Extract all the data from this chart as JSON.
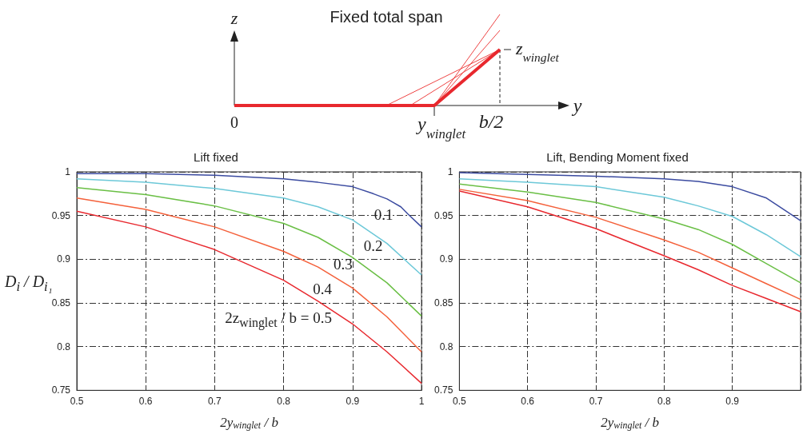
{
  "chart_data": [
    {
      "type": "other",
      "title": "Fixed total span",
      "annotations": [
        "z",
        "y",
        "0",
        "y$_{winglet}$",
        "b/2",
        "z$_{winglet}$"
      ]
    },
    {
      "type": "line",
      "title": "Lift fixed",
      "xlabel": "2y$_{winglet}$ / b",
      "ylabel": "D$_{i}$ / D$_{i₁}$",
      "xlim": [
        0.5,
        1
      ],
      "ylim": [
        0.75,
        1
      ],
      "xticks": [
        0.5,
        0.6,
        0.7,
        0.8,
        0.9,
        1
      ],
      "yticks": [
        0.75,
        0.8,
        0.85,
        0.9,
        0.95,
        1
      ],
      "grid": true,
      "line_style": "solid",
      "marker": "none",
      "x": [
        0.5,
        0.6,
        0.7,
        0.8,
        0.85,
        0.9,
        0.95,
        1
      ],
      "series": [
        {
          "name": "0.1",
          "color": "#3b4ba0",
          "x": [
            0.5,
            0.6,
            0.7,
            0.8,
            0.85,
            0.9,
            0.93,
            0.95,
            0.97,
            0.98,
            1
          ],
          "values": [
            0.998,
            0.998,
            0.996,
            0.992,
            0.988,
            0.983,
            0.975,
            0.969,
            0.96,
            0.952,
            0.937
          ]
        },
        {
          "name": "0.2",
          "color": "#6cc8d8",
          "values": [
            0.992,
            0.988,
            0.981,
            0.97,
            0.96,
            0.945,
            0.918,
            0.882
          ]
        },
        {
          "name": "0.3",
          "color": "#6abf45",
          "values": [
            0.982,
            0.974,
            0.961,
            0.941,
            0.925,
            0.902,
            0.873,
            0.835
          ]
        },
        {
          "name": "0.4",
          "color": "#f4603a",
          "values": [
            0.97,
            0.957,
            0.937,
            0.909,
            0.891,
            0.867,
            0.834,
            0.794
          ]
        },
        {
          "name": "2z$_{winglet}$ / b = 0.5",
          "color": "#e8282e",
          "values": [
            0.955,
            0.937,
            0.911,
            0.876,
            0.852,
            0.826,
            0.794,
            0.758
          ]
        }
      ]
    },
    {
      "type": "line",
      "title": "Lift, Bending Moment fixed",
      "xlabel": "2y$_{winglet}$ / b",
      "xlim": [
        0.5,
        1
      ],
      "ylim": [
        0.75,
        1
      ],
      "xticks": [
        0.5,
        0.6,
        0.7,
        0.8,
        0.9,
        {
          "value": 1,
          "label": null
        }
      ],
      "yticks": [
        0.75,
        0.8,
        0.85,
        0.9,
        0.95,
        1
      ],
      "grid": true,
      "line_style": "solid",
      "marker": "none",
      "x": [
        0.5,
        0.6,
        0.7,
        0.8,
        0.85,
        0.9,
        0.95,
        1
      ],
      "series": [
        {
          "color": "#3b4ba0",
          "values": [
            0.999,
            0.997,
            0.995,
            0.992,
            0.989,
            0.983,
            0.97,
            0.944
          ]
        },
        {
          "color": "#6cc8d8",
          "values": [
            0.992,
            0.988,
            0.983,
            0.971,
            0.961,
            0.949,
            0.928,
            0.903
          ]
        },
        {
          "color": "#6abf45",
          "values": [
            0.986,
            0.977,
            0.965,
            0.946,
            0.934,
            0.917,
            0.895,
            0.873
          ]
        },
        {
          "color": "#f4603a",
          "values": [
            0.98,
            0.967,
            0.948,
            0.922,
            0.908,
            0.89,
            0.872,
            0.854
          ]
        },
        {
          "color": "#e8282e",
          "values": [
            0.978,
            0.96,
            0.935,
            0.904,
            0.888,
            0.87,
            0.855,
            0.84
          ]
        }
      ]
    }
  ]
}
